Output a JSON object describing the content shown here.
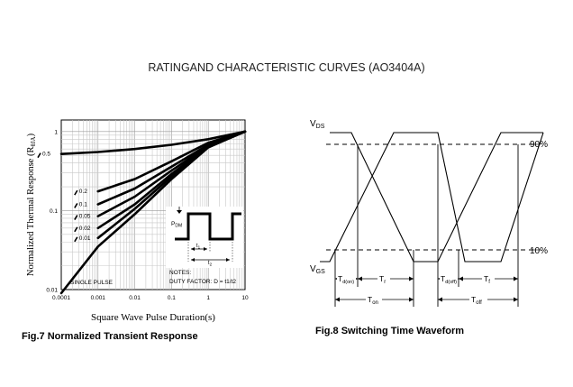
{
  "page": {
    "title": "RATINGAND CHARACTERISTIC CURVES (AO3404A)"
  },
  "chart_data": [
    {
      "type": "line",
      "caption": "Fig.7   Normalized Transient Response",
      "xlabel": "Square Wave Pulse Duration(s)",
      "ylabel": "Normalized Thermal Response (R",
      "ylabel_sub": "θJA",
      "ylabel_close": ")",
      "x_scale": "log",
      "y_scale": "log",
      "xlim": [
        0.0001,
        10
      ],
      "ylim": [
        0.01,
        1.4
      ],
      "grid": true,
      "x_ticks": [
        {
          "v": 0.0001,
          "label": "0.0001"
        },
        {
          "v": 0.001,
          "label": "0.001"
        },
        {
          "v": 0.01,
          "label": "0.01"
        },
        {
          "v": 0.1,
          "label": "0.1"
        },
        {
          "v": 1,
          "label": "1"
        },
        {
          "v": 10,
          "label": "10"
        }
      ],
      "y_ticks": [
        {
          "v": 0.01,
          "label": "0.01"
        },
        {
          "v": 0.1,
          "label": "0.1"
        },
        {
          "v": 1,
          "label": "1"
        }
      ],
      "series": [
        {
          "name": "0.5",
          "points": [
            [
              0.0001,
              0.52
            ],
            [
              0.001,
              0.55
            ],
            [
              0.01,
              0.6
            ],
            [
              0.1,
              0.68
            ],
            [
              1,
              0.8
            ],
            [
              10,
              1.0
            ]
          ]
        },
        {
          "name": "0.2",
          "points": [
            [
              0.001,
              0.175
            ],
            [
              0.01,
              0.25
            ],
            [
              0.1,
              0.42
            ],
            [
              1,
              0.72
            ],
            [
              10,
              1.0
            ]
          ]
        },
        {
          "name": "0.1",
          "points": [
            [
              0.001,
              0.12
            ],
            [
              0.01,
              0.19
            ],
            [
              0.1,
              0.36
            ],
            [
              1,
              0.68
            ],
            [
              10,
              1.0
            ]
          ]
        },
        {
          "name": "0.05",
          "points": [
            [
              0.001,
              0.085
            ],
            [
              0.01,
              0.15
            ],
            [
              0.1,
              0.32
            ],
            [
              1,
              0.66
            ],
            [
              10,
              1.0
            ]
          ]
        },
        {
          "name": "0.02",
          "points": [
            [
              0.001,
              0.06
            ],
            [
              0.01,
              0.12
            ],
            [
              0.1,
              0.29
            ],
            [
              1,
              0.65
            ],
            [
              10,
              1.0
            ]
          ]
        },
        {
          "name": "0.01",
          "points": [
            [
              0.001,
              0.045
            ],
            [
              0.01,
              0.105
            ],
            [
              0.1,
              0.27
            ],
            [
              1,
              0.64
            ],
            [
              10,
              1.0
            ]
          ]
        },
        {
          "name": "SINGLE PULSE",
          "points": [
            [
              0.0001,
              0.009
            ],
            [
              0.001,
              0.035
            ],
            [
              0.01,
              0.09
            ],
            [
              0.1,
              0.25
            ],
            [
              1,
              0.63
            ],
            [
              10,
              1.0
            ]
          ]
        }
      ],
      "annotations": {
        "single_pulse": "SINGLE PULSE",
        "notes": "NOTES:",
        "duty_factor": "DUTY FACTOR: D = t1/t2",
        "pdm": "P",
        "pdm_sub": "DM",
        "t1": "t",
        "t1_sub": "1",
        "t2": "t",
        "t2_sub": "2"
      }
    },
    {
      "type": "diagram",
      "caption": "Fig.8   Switching Time Waveform",
      "labels": {
        "vds": "V",
        "vds_sub": "DS",
        "vgs": "V",
        "vgs_sub": "GS",
        "p90": "90%",
        "p10": "10%",
        "tdon": "T",
        "tdon_sub": "d(on)",
        "tr": "T",
        "tr_sub": "r",
        "tdoff": "T",
        "tdoff_sub": "d(off)",
        "tf": "T",
        "tf_sub": "f",
        "ton": "T",
        "ton_sub": "on",
        "toff": "T",
        "toff_sub": "off"
      }
    }
  ]
}
